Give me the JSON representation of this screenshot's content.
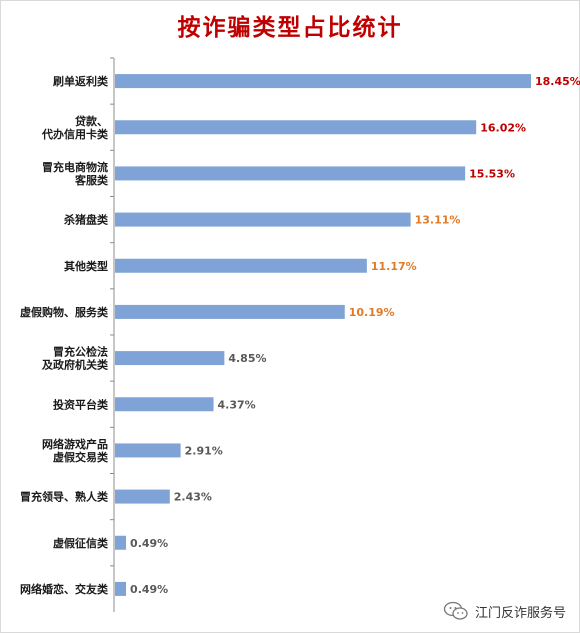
{
  "chart_data": {
    "type": "bar",
    "orientation": "horizontal",
    "title": "按诈骗类型占比统计",
    "categories": [
      [
        "刷单返利类"
      ],
      [
        "贷款、",
        "代办信用卡类"
      ],
      [
        "冒充电商物流",
        "客服类"
      ],
      [
        "杀猪盘类"
      ],
      [
        "其他类型"
      ],
      [
        "虚假购物、服务类"
      ],
      [
        "冒充公检法",
        "及政府机关类"
      ],
      [
        "投资平台类"
      ],
      [
        "网络游戏产品",
        "虚假交易类"
      ],
      [
        "冒充领导、熟人类"
      ],
      [
        "虚假征信类"
      ],
      [
        "网络婚恋、交友类"
      ]
    ],
    "values": [
      18.45,
      16.02,
      15.53,
      13.11,
      11.17,
      10.19,
      4.85,
      4.37,
      2.91,
      2.43,
      0.49,
      0.49
    ],
    "value_labels": [
      "18.45%",
      "16.02%",
      "15.53%",
      "13.11%",
      "11.17%",
      "10.19%",
      "4.85%",
      "4.37%",
      "2.91%",
      "2.43%",
      "0.49%",
      "0.49%"
    ],
    "label_colors": [
      "#c00000",
      "#c00000",
      "#c00000",
      "#e07b28",
      "#e07b28",
      "#e07b28",
      "#595959",
      "#595959",
      "#595959",
      "#595959",
      "#595959",
      "#595959"
    ],
    "bar_color": "#7fa3d6",
    "xlim": [
      0,
      18.45
    ],
    "grid": false
  },
  "watermark": {
    "text": "江门反诈服务号",
    "icon": "wechat-icon"
  },
  "colors": {
    "title": "#c00000",
    "axis": "#8c8c8c"
  }
}
